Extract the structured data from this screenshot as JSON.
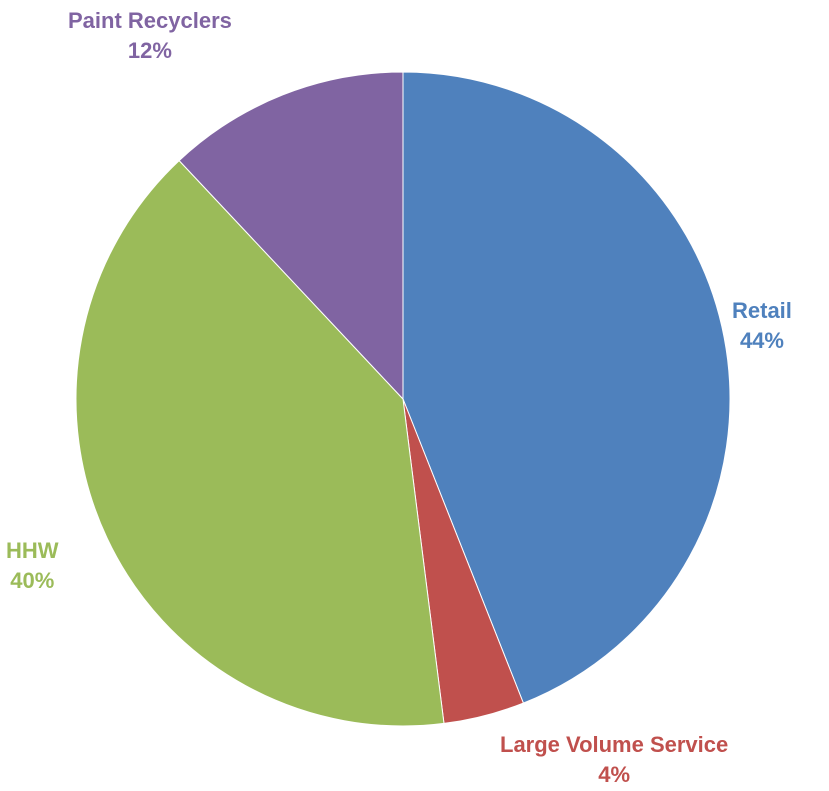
{
  "chart_data": {
    "type": "pie",
    "start_angle_deg": 0,
    "direction": "clockwise",
    "slices": [
      {
        "label": "Retail",
        "value": 44,
        "value_label": "44%",
        "color": "#4F81BD"
      },
      {
        "label": "Large Volume Service",
        "value": 4,
        "value_label": "4%",
        "color": "#C0504D"
      },
      {
        "label": "HHW",
        "value": 40,
        "value_label": "40%",
        "color": "#9BBB59"
      },
      {
        "label": "Paint Recyclers",
        "value": 12,
        "value_label": "12%",
        "color": "#8064A2"
      }
    ]
  }
}
